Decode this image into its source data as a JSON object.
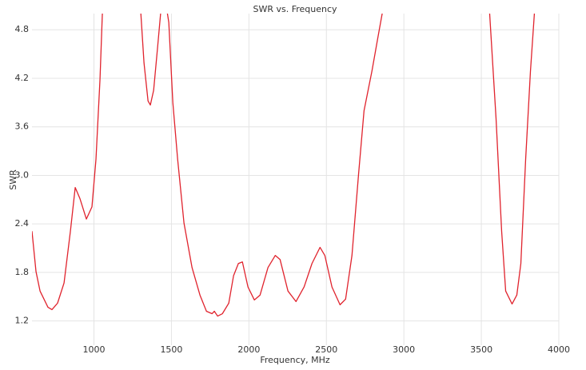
{
  "chart_data": {
    "type": "line",
    "title": "SWR vs. Frequency",
    "x_label": "Frequency, MHz",
    "y_label": "SWR",
    "xlim": [
      600,
      4000
    ],
    "ylim": [
      0.9,
      5.0
    ],
    "xticks": [
      1000,
      1500,
      2000,
      2500,
      3000,
      3500,
      4000
    ],
    "yticks": [
      1.2,
      1.8,
      2.4,
      {
        "value": 3,
        "label": "3.0"
      },
      3.6,
      4.2,
      4.8
    ],
    "grid": true,
    "series": [
      {
        "name": "SWR",
        "color": "#e0232d",
        "x": [
          600,
          626,
          652,
          703,
          729,
          765,
          807,
          848,
          879,
          910,
          951,
          987,
          1013,
          1039,
          1054,
          1080,
          1280,
          1302,
          1323,
          1349,
          1364,
          1385,
          1411,
          1431,
          1450,
          1483,
          1509,
          1540,
          1581,
          1633,
          1684,
          1726,
          1762,
          1777,
          1798,
          1829,
          1870,
          1901,
          1932,
          1958,
          1994,
          2035,
          2072,
          2123,
          2170,
          2201,
          2252,
          2304,
          2356,
          2407,
          2459,
          2490,
          2536,
          2588,
          2624,
          2665,
          2707,
          2743,
          2794,
          2831,
          2862,
          2900,
          3520,
          3553,
          3595,
          3631,
          3657,
          3698,
          3729,
          3755,
          3786,
          3817,
          3843
        ],
        "values": [
          2.31,
          1.81,
          1.57,
          1.37,
          1.34,
          1.42,
          1.67,
          2.31,
          2.85,
          2.71,
          2.46,
          2.61,
          3.2,
          4.19,
          4.99,
          5.5,
          5.5,
          5.02,
          4.39,
          3.92,
          3.87,
          4.05,
          4.59,
          5.02,
          5.3,
          4.89,
          3.9,
          3.2,
          2.41,
          1.86,
          1.52,
          1.32,
          1.29,
          1.32,
          1.26,
          1.29,
          1.42,
          1.76,
          1.91,
          1.93,
          1.62,
          1.46,
          1.52,
          1.86,
          2.01,
          1.96,
          1.57,
          1.44,
          1.62,
          1.91,
          2.11,
          2.01,
          1.62,
          1.4,
          1.47,
          2.01,
          3.0,
          3.8,
          4.29,
          4.69,
          5.02,
          5.5,
          5.5,
          5.02,
          3.7,
          2.31,
          1.57,
          1.41,
          1.52,
          1.91,
          3.2,
          4.29,
          5.02
        ]
      }
    ]
  }
}
